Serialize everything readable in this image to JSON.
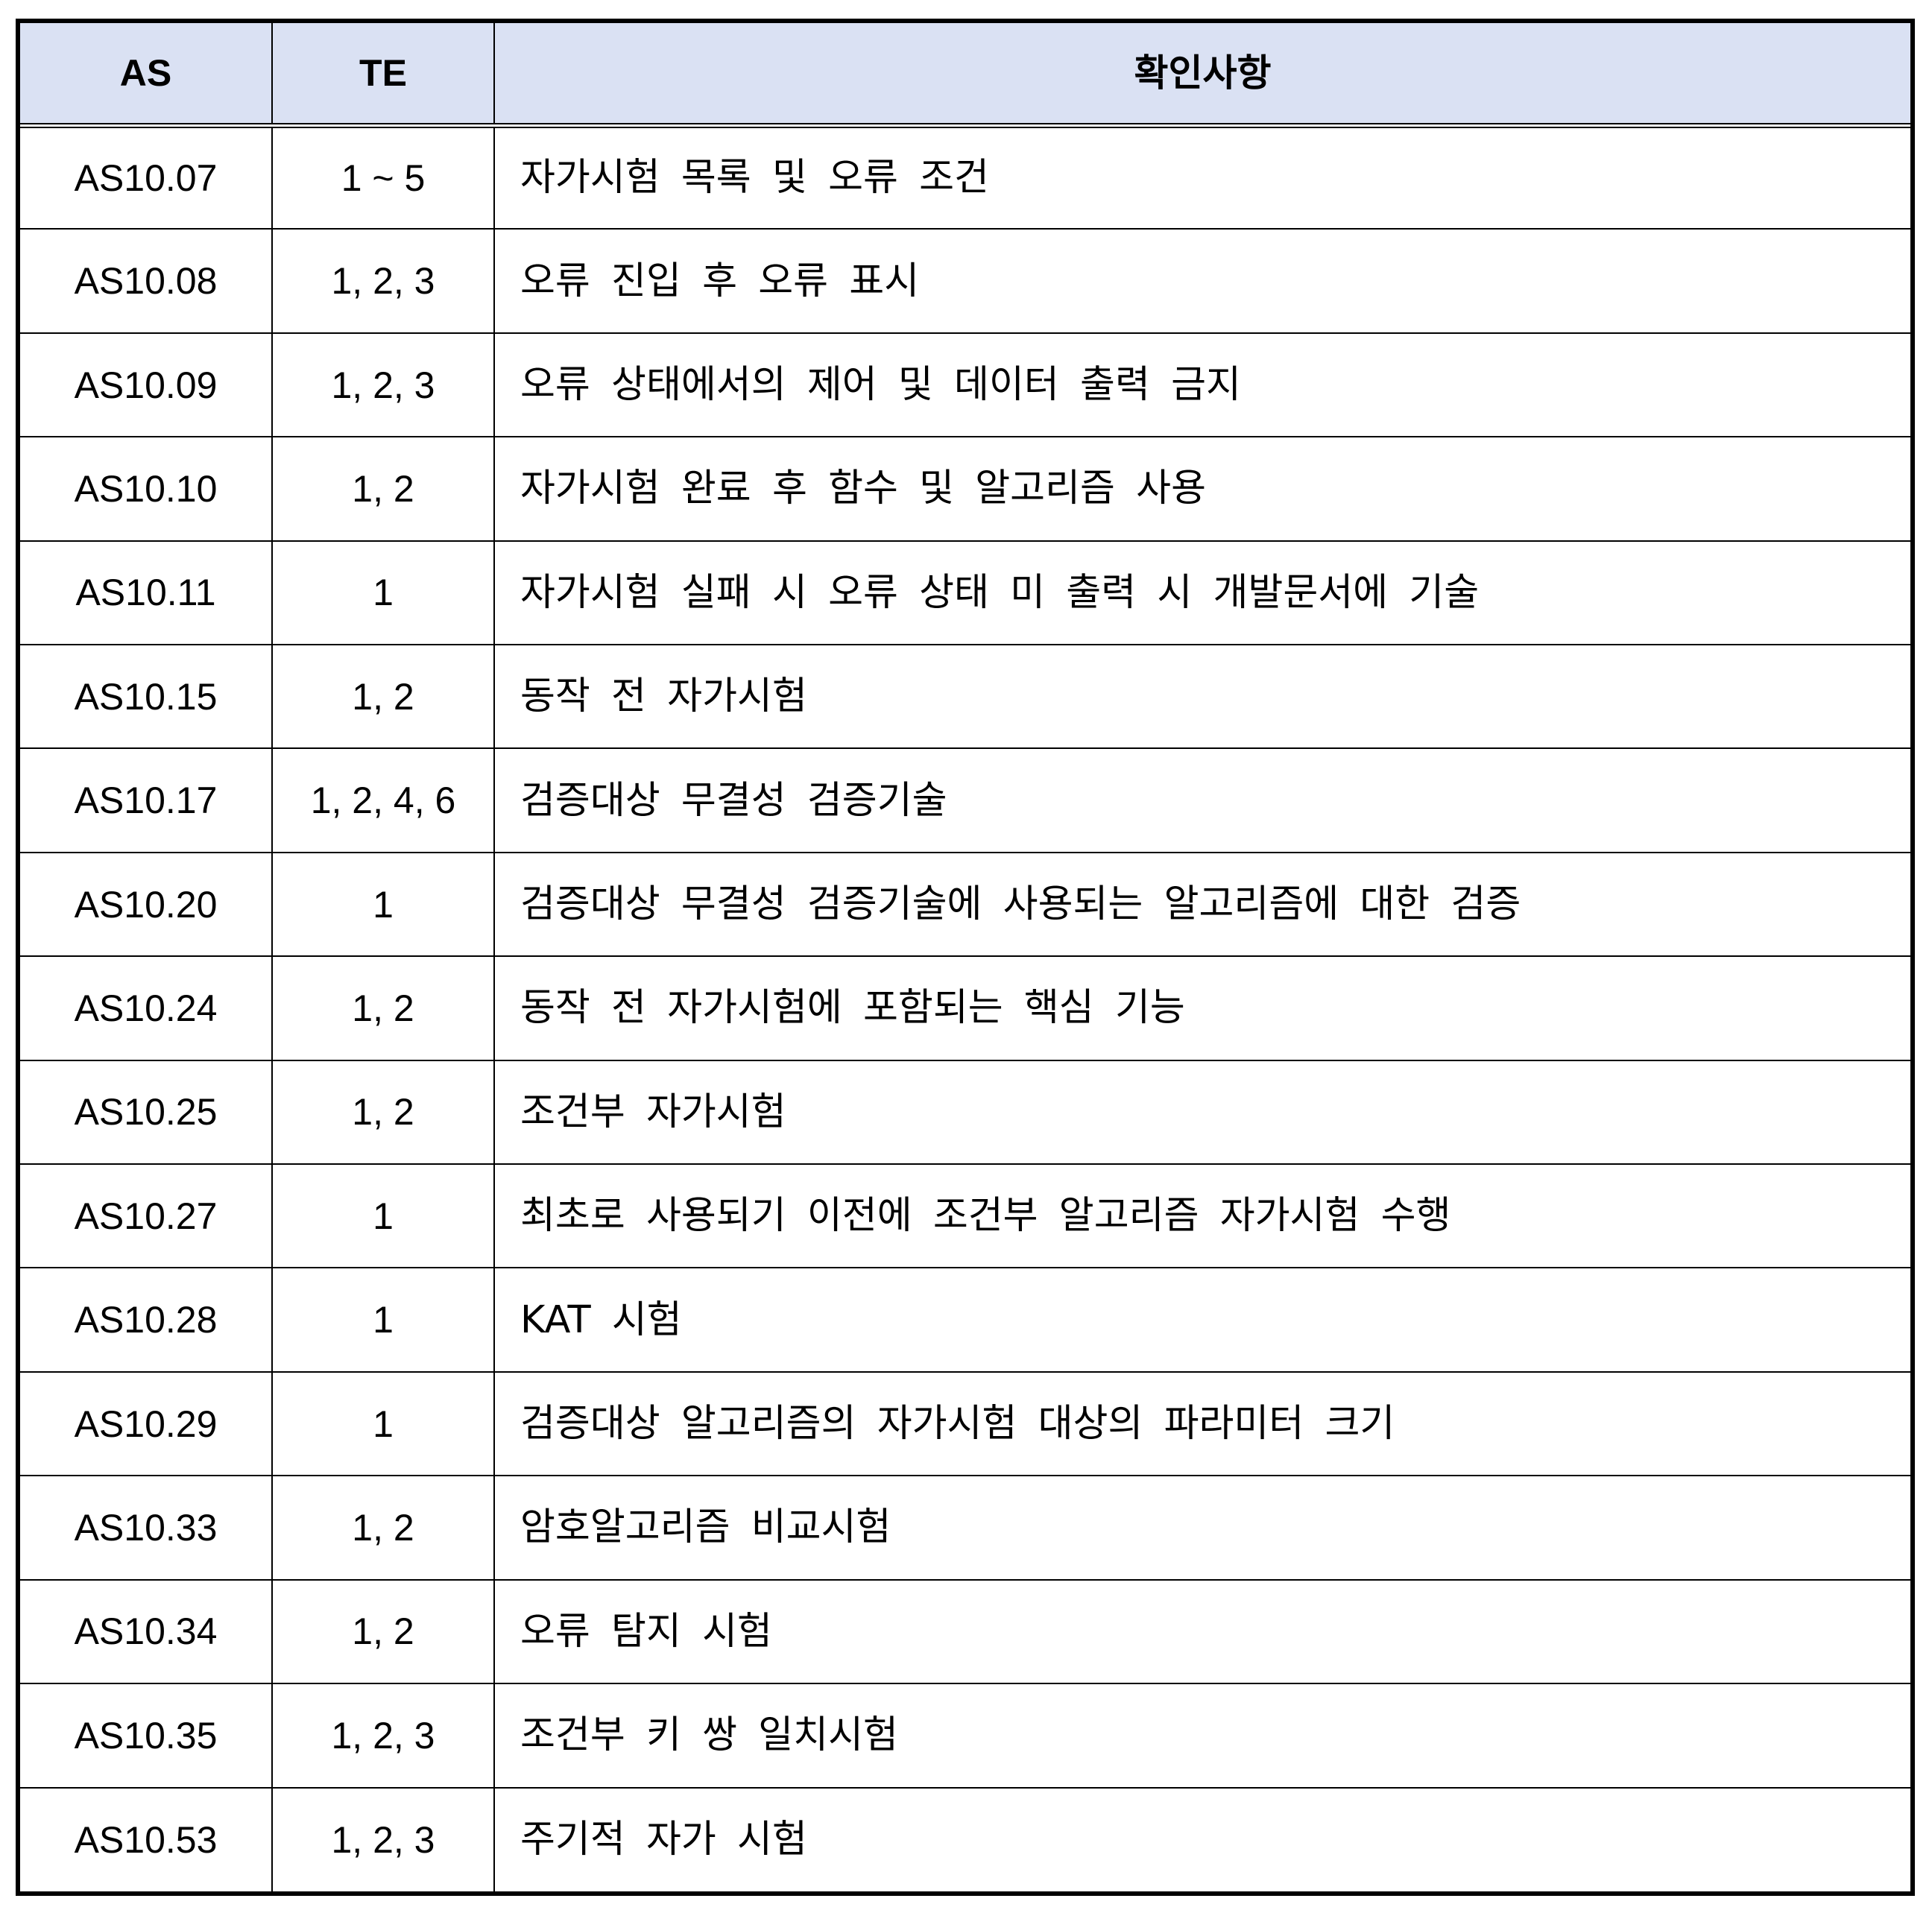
{
  "header": {
    "as": "AS",
    "te": "TE",
    "desc": "확인사항"
  },
  "rows": [
    {
      "as": "AS10.07",
      "te": "1 ~ 5",
      "desc": "자가시험 목록 및 오류 조건"
    },
    {
      "as": "AS10.08",
      "te": "1, 2, 3",
      "desc": "오류 진입 후 오류 표시"
    },
    {
      "as": "AS10.09",
      "te": "1, 2, 3",
      "desc": "오류 상태에서의 제어 및 데이터 출력 금지"
    },
    {
      "as": "AS10.10",
      "te": "1, 2",
      "desc": "자가시험 완료 후 함수 및 알고리즘 사용"
    },
    {
      "as": "AS10.11",
      "te": "1",
      "desc": "자가시험 실패 시 오류 상태 미 출력 시 개발문서에 기술"
    },
    {
      "as": "AS10.15",
      "te": "1, 2",
      "desc": "동작 전 자가시험"
    },
    {
      "as": "AS10.17",
      "te": "1, 2, 4, 6",
      "desc": "검증대상 무결성 검증기술"
    },
    {
      "as": "AS10.20",
      "te": "1",
      "desc": "검증대상 무결성 검증기술에 사용되는 알고리즘에 대한 검증"
    },
    {
      "as": "AS10.24",
      "te": "1, 2",
      "desc": "동작 전 자가시험에 포함되는 핵심 기능"
    },
    {
      "as": "AS10.25",
      "te": "1, 2",
      "desc": "조건부 자가시험"
    },
    {
      "as": "AS10.27",
      "te": "1",
      "desc": "최초로 사용되기 이전에 조건부 알고리즘 자가시험 수행"
    },
    {
      "as": "AS10.28",
      "te": "1",
      "desc": "KAT 시험"
    },
    {
      "as": "AS10.29",
      "te": "1",
      "desc": "검증대상 알고리즘의 자가시험 대상의 파라미터 크기"
    },
    {
      "as": "AS10.33",
      "te": "1, 2",
      "desc": "암호알고리즘 비교시험"
    },
    {
      "as": "AS10.34",
      "te": "1, 2",
      "desc": "오류 탐지 시험"
    },
    {
      "as": "AS10.35",
      "te": "1, 2, 3",
      "desc": "조건부 키 쌍 일치시험"
    },
    {
      "as": "AS10.53",
      "te": "1, 2, 3",
      "desc": "주기적 자가 시험"
    }
  ],
  "colors": {
    "header_bg": "#dae1f3",
    "border": "#000000"
  }
}
